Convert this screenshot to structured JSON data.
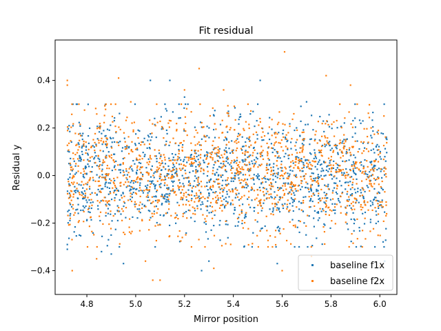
{
  "chart_data": {
    "type": "scatter",
    "title": "Fit residual",
    "xlabel": "Mirror position",
    "ylabel": "Residual y",
    "xlim": [
      4.67,
      6.07
    ],
    "ylim": [
      -0.5,
      0.57
    ],
    "xticks": [
      4.8,
      5.0,
      5.2,
      5.4,
      5.6,
      5.8,
      6.0
    ],
    "xtick_labels": [
      "4.8",
      "5.0",
      "5.2",
      "5.4",
      "5.6",
      "5.8",
      "6.0"
    ],
    "yticks": [
      -0.4,
      -0.2,
      0.0,
      0.2,
      0.4
    ],
    "ytick_labels": [
      "−0.4",
      "−0.2",
      "0.0",
      "0.2",
      "0.4"
    ],
    "grid": false,
    "legend_position": "lower right",
    "series": [
      {
        "name": "baseline f1x",
        "color": "#1f77b4",
        "x_range": [
          4.72,
          6.03
        ],
        "point_count": 1400,
        "spread_sd": 0.12,
        "points": [
          [
            4.72,
            -0.31
          ],
          [
            4.72,
            -0.29
          ],
          [
            4.76,
            0.3
          ],
          [
            4.86,
            -0.32
          ],
          [
            4.95,
            -0.37
          ],
          [
            5.06,
            0.4
          ],
          [
            5.14,
            0.4
          ],
          [
            5.27,
            -0.4
          ],
          [
            5.51,
            0.4
          ],
          [
            5.58,
            -0.37
          ],
          [
            5.85,
            -0.38
          ],
          [
            5.92,
            -0.39
          ],
          [
            6.02,
            -0.36
          ],
          [
            5.5,
            0.3
          ],
          [
            5.3,
            -0.36
          ],
          [
            4.9,
            -0.33
          ],
          [
            5.2,
            0.33
          ],
          [
            5.7,
            0.31
          ],
          [
            5.98,
            -0.3
          ],
          [
            5.38,
            0.27
          ]
        ]
      },
      {
        "name": "baseline f2x",
        "color": "#ff7f0e",
        "x_range": [
          4.72,
          6.03
        ],
        "point_count": 1400,
        "spread_sd": 0.13,
        "points": [
          [
            4.72,
            0.4
          ],
          [
            4.72,
            0.38
          ],
          [
            4.74,
            -0.4
          ],
          [
            4.93,
            0.41
          ],
          [
            5.07,
            -0.44
          ],
          [
            5.1,
            -0.44
          ],
          [
            5.26,
            0.45
          ],
          [
            5.61,
            0.52
          ],
          [
            5.78,
            0.42
          ],
          [
            5.6,
            -0.4
          ],
          [
            5.2,
            0.36
          ],
          [
            5.32,
            -0.39
          ],
          [
            5.88,
            0.38
          ],
          [
            6.0,
            -0.38
          ],
          [
            5.04,
            -0.36
          ],
          [
            4.98,
            0.31
          ],
          [
            5.46,
            0.3
          ],
          [
            5.72,
            -0.34
          ],
          [
            5.36,
            0.36
          ],
          [
            4.84,
            -0.35
          ]
        ]
      }
    ]
  }
}
